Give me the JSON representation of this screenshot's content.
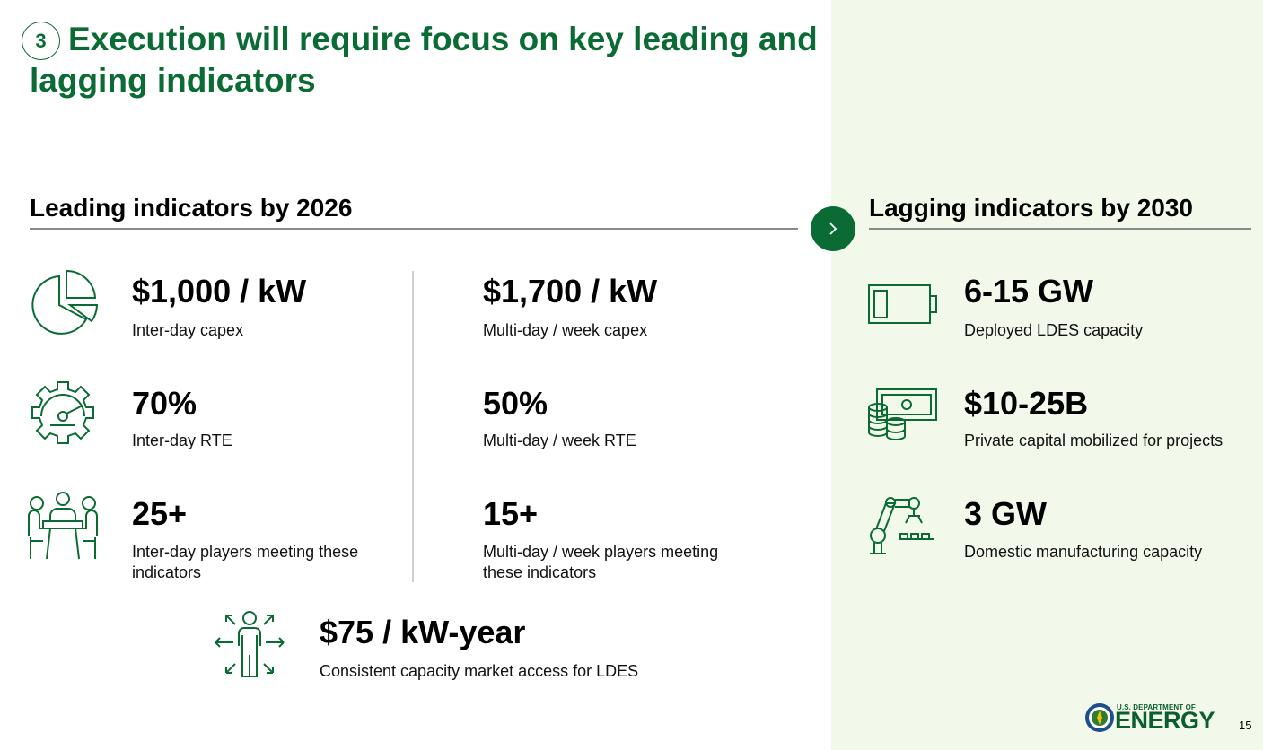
{
  "slide": {
    "number": "3",
    "title": "Execution will require focus on key leading and lagging indicators",
    "page_number": "15"
  },
  "leading": {
    "heading": "Leading indicators by 2026",
    "metrics": [
      {
        "value": "$1,000 / kW",
        "label": "Inter-day capex",
        "icon": "pie-chart-icon"
      },
      {
        "value": "$1,700 / kW",
        "label": "Multi-day / week capex"
      },
      {
        "value": "70%",
        "label": "Inter-day RTE",
        "icon": "gear-gauge-icon"
      },
      {
        "value": "50%",
        "label": "Multi-day / week RTE"
      },
      {
        "value": "25+",
        "label": "Inter-day players meeting these indicators",
        "icon": "meeting-people-icon"
      },
      {
        "value": "15+",
        "label": "Multi-day / week players meeting these indicators"
      }
    ],
    "bottom": {
      "value": "$75 / kW-year",
      "label": "Consistent capacity market access for LDES",
      "icon": "person-arrows-icon"
    }
  },
  "lagging": {
    "heading": "Lagging indicators by 2030",
    "metrics": [
      {
        "value": "6-15 GW",
        "label": "Deployed LDES capacity",
        "icon": "battery-icon"
      },
      {
        "value": "$10-25B",
        "label": "Private capital mobilized for projects",
        "icon": "money-coins-icon"
      },
      {
        "value": "3 GW",
        "label": "Domestic manufacturing capacity",
        "icon": "robot-arm-icon"
      }
    ]
  },
  "logo": {
    "top_text": "U.S. DEPARTMENT OF",
    "main_text": "ENERGY"
  },
  "colors": {
    "accent": "#0b6b34",
    "panel": "#f2f9ea",
    "rule": "#8a8a8a"
  }
}
